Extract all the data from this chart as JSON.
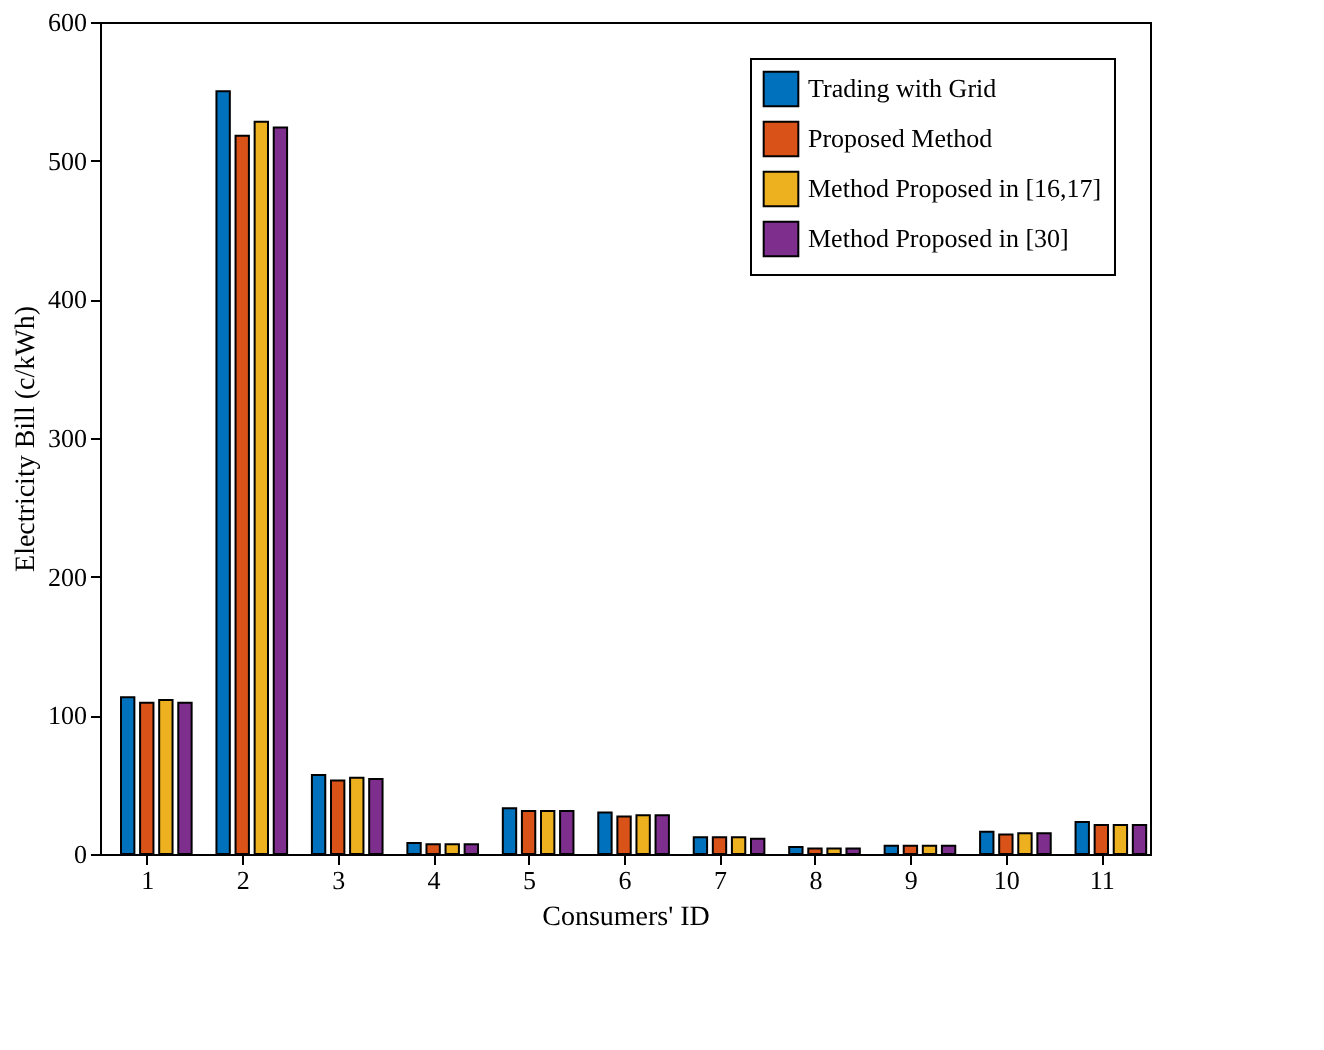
{
  "chart_data": {
    "type": "bar",
    "xlabel": "Consumers' ID",
    "ylabel": "Electricity Bill (c/kWh)",
    "categories": [
      "1",
      "2",
      "3",
      "4",
      "5",
      "6",
      "7",
      "8",
      "9",
      "10",
      "11"
    ],
    "series": [
      {
        "name": "Trading with Grid",
        "color": "#0072bd",
        "values": [
          113,
          550,
          57,
          8,
          33,
          30,
          12,
          5,
          6,
          16,
          23
        ]
      },
      {
        "name": "Proposed Method",
        "color": "#d95319",
        "values": [
          109,
          518,
          53,
          7,
          31,
          27,
          12,
          4,
          6,
          14,
          21
        ]
      },
      {
        "name": "Method Proposed in [16,17]",
        "color": "#edb120",
        "values": [
          111,
          528,
          55,
          7,
          31,
          28,
          12,
          4,
          6,
          15,
          21
        ]
      },
      {
        "name": "Method Proposed in [30]",
        "color": "#7e2f8e",
        "values": [
          109,
          524,
          54,
          7,
          31,
          28,
          11,
          4,
          6,
          15,
          21
        ]
      }
    ],
    "ylim": [
      0,
      600
    ],
    "yticks": [
      0,
      100,
      200,
      300,
      400,
      500,
      600
    ],
    "grid": false,
    "legend": "top right"
  }
}
